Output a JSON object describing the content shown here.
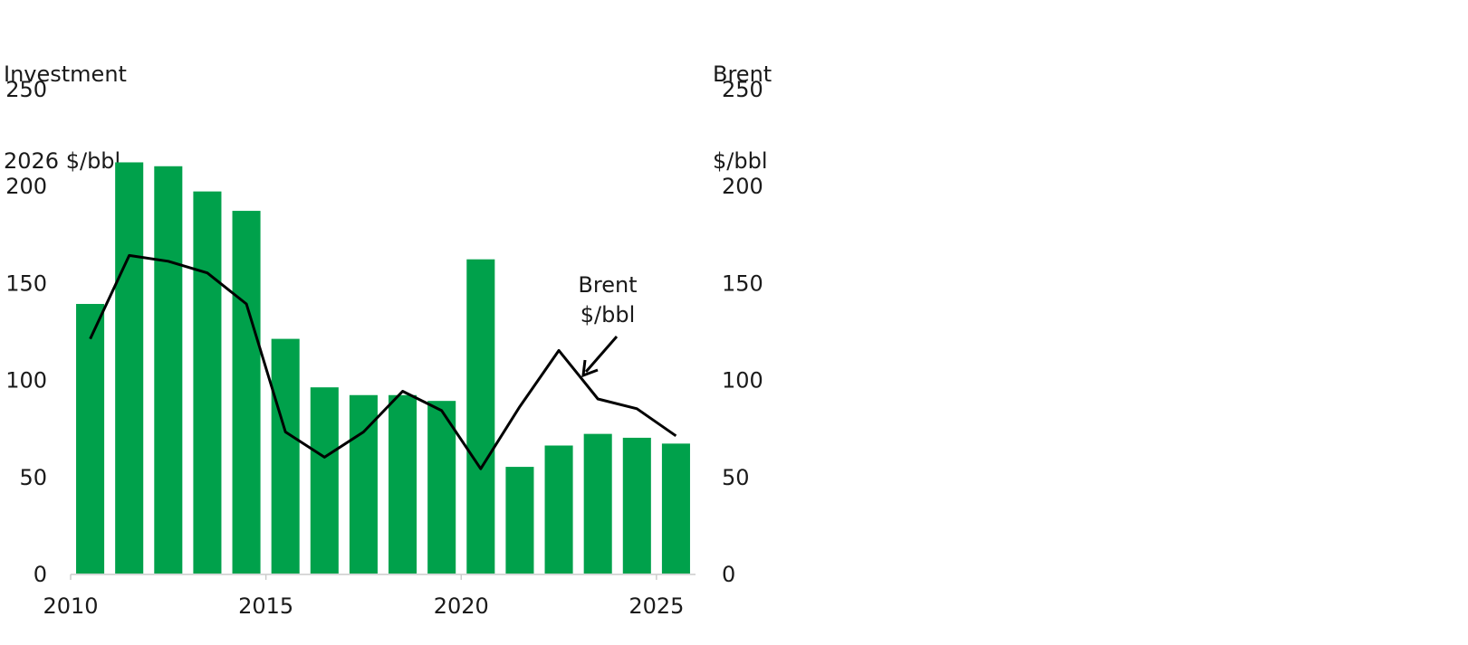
{
  "chart_data": {
    "type": "bar",
    "left_axis_title_line1": "Investment",
    "left_axis_title_line2": "2026 $/bbl",
    "right_axis_title_line1": "Brent",
    "right_axis_title_line2": "$/bbl",
    "x": [
      2010,
      2011,
      2012,
      2013,
      2014,
      2015,
      2016,
      2017,
      2018,
      2019,
      2020,
      2021,
      2022,
      2023,
      2024,
      2025
    ],
    "x_tick_labels": [
      "2010",
      "2015",
      "2020",
      "2025"
    ],
    "y_ticks": [
      0,
      50,
      100,
      150,
      200,
      250
    ],
    "ylim": [
      0,
      250
    ],
    "series": [
      {
        "values": [
          139,
          212,
          210,
          197,
          187,
          121,
          96,
          92,
          92,
          89,
          162,
          55,
          66,
          72,
          70,
          67
        ]
      },
      {
        "values": [
          121,
          164,
          161,
          155,
          139,
          73,
          60,
          73,
          94,
          84,
          54,
          86,
          115,
          90,
          85,
          71
        ]
      }
    ],
    "annotation_line1": "Brent",
    "annotation_line2": "$/bbl",
    "colors": {
      "bar": "#00a14b",
      "line": "#000000",
      "axis": "#cccccc",
      "text": "#1a1a1a"
    },
    "grid": false
  }
}
